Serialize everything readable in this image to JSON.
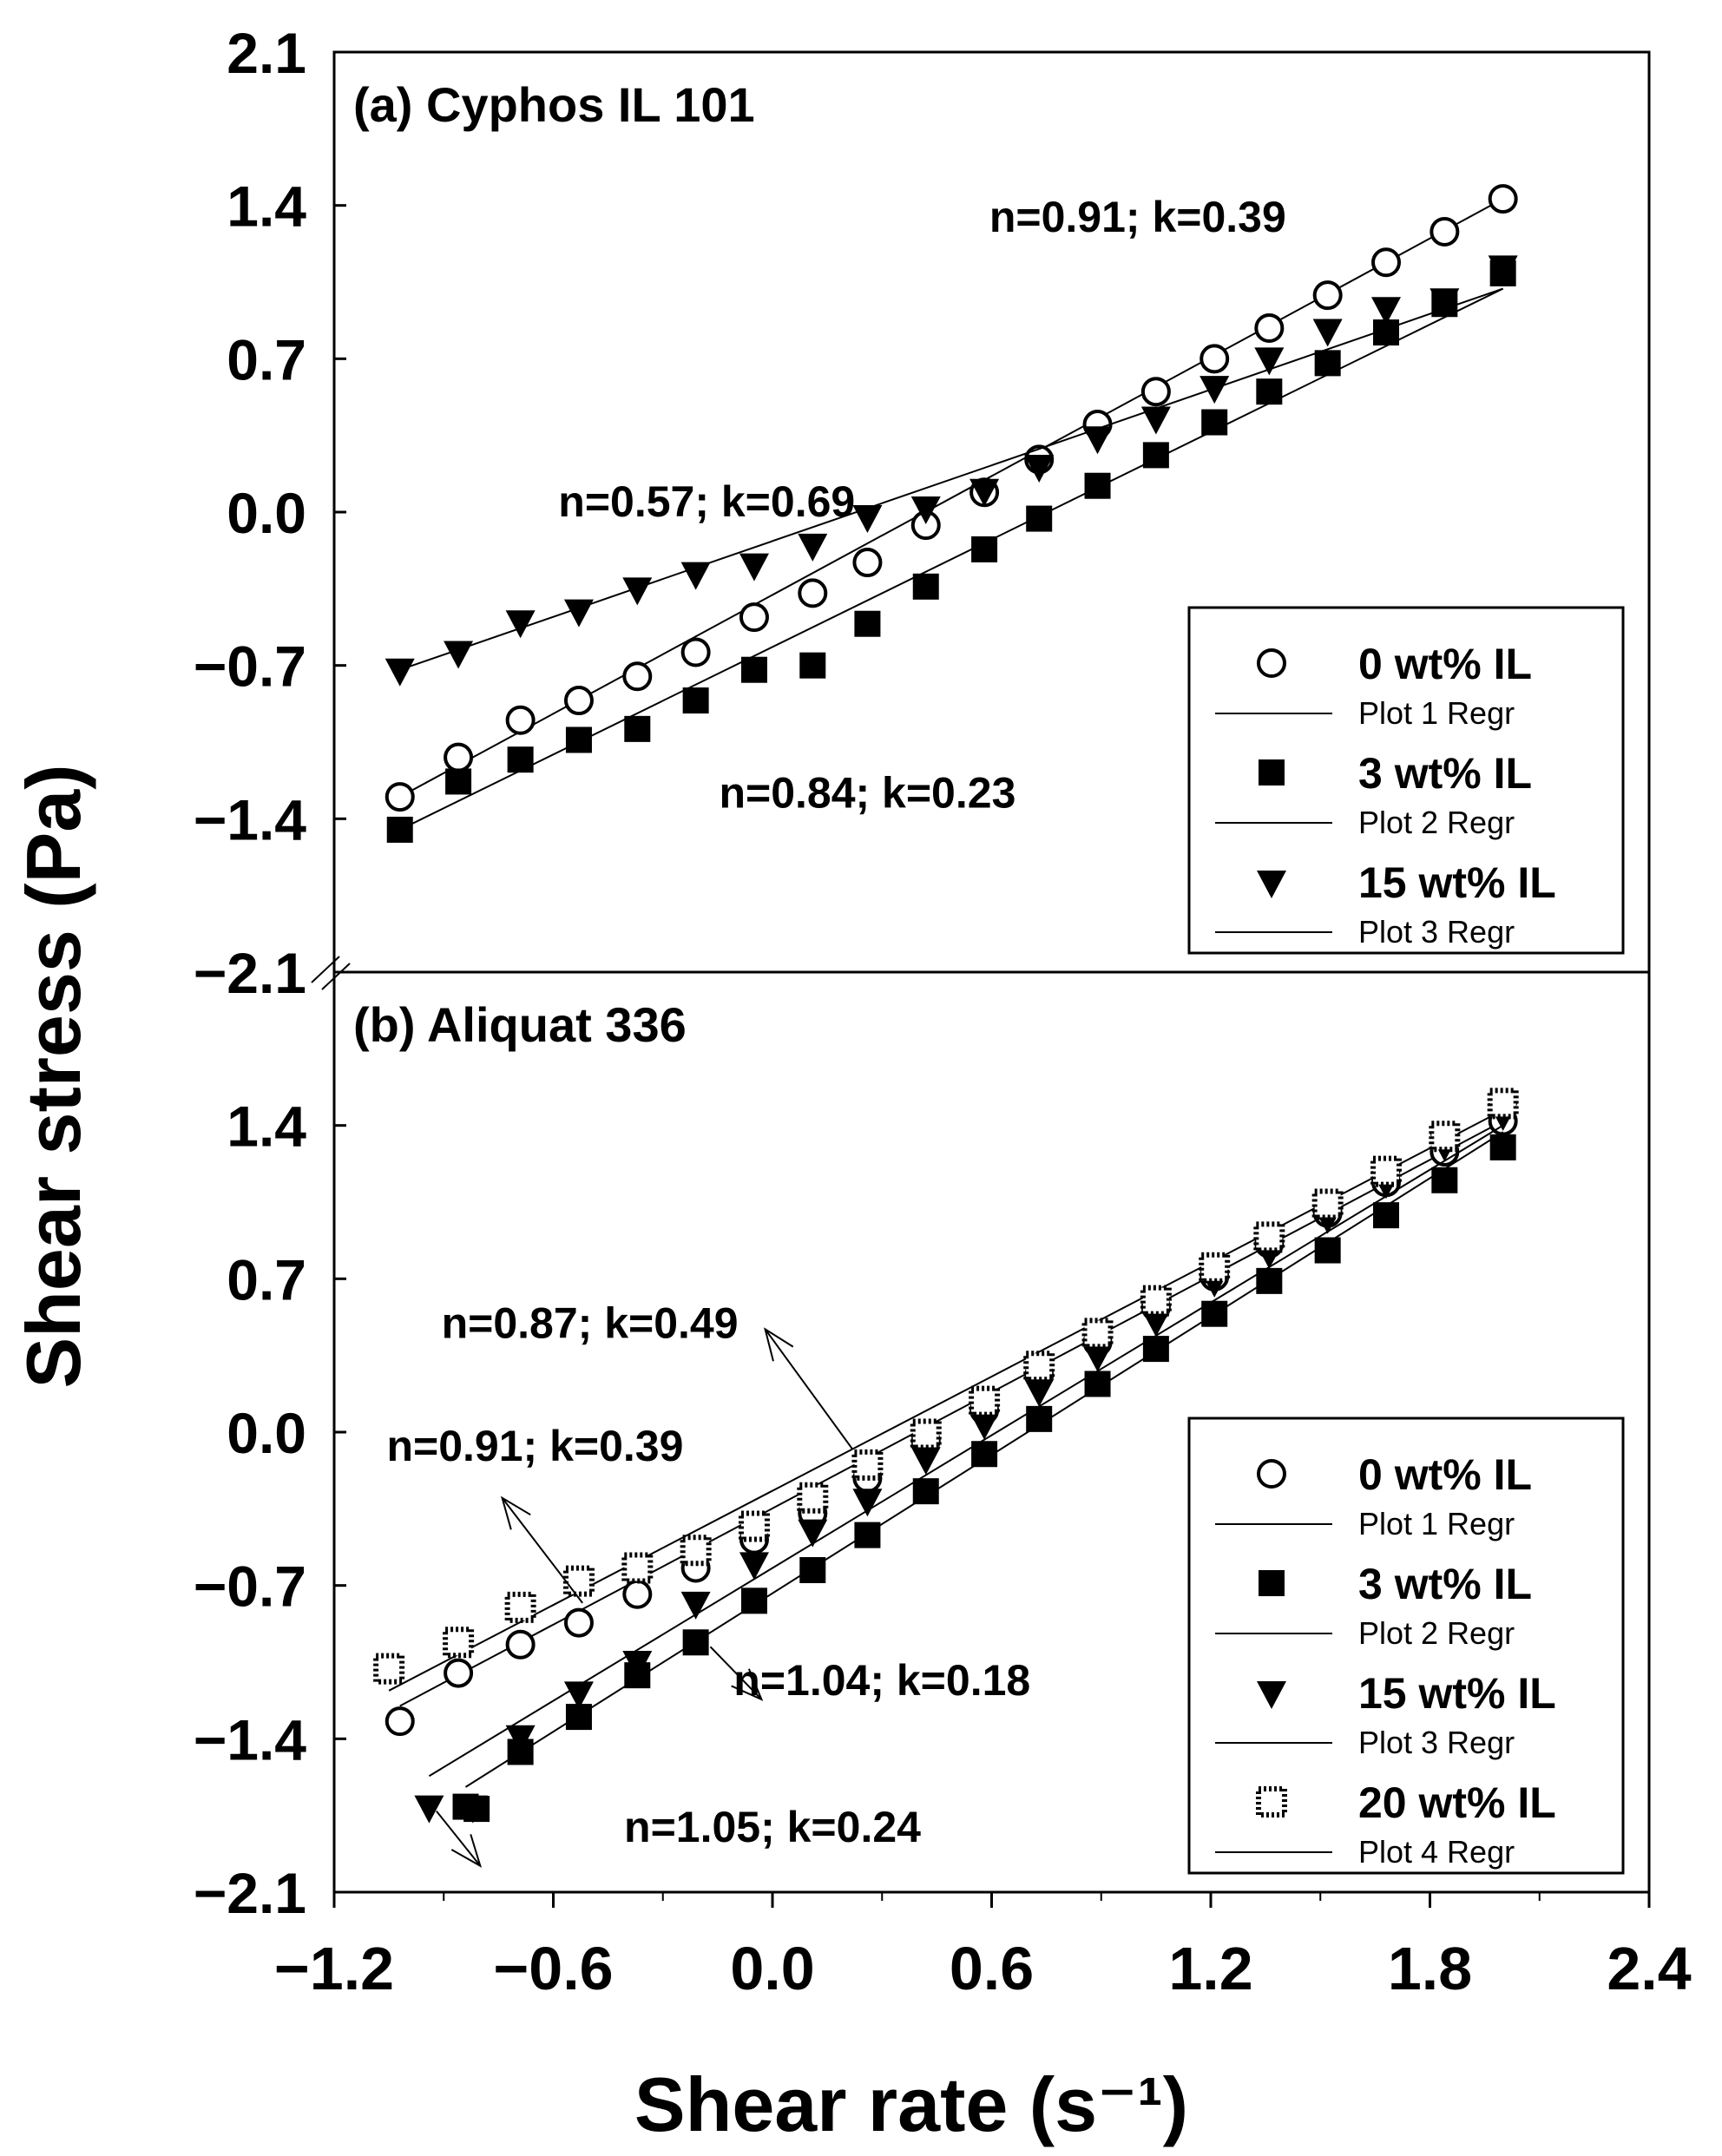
{
  "chart_data": {
    "type": "scatter",
    "xlabel": "Shear rate (s⁻¹)",
    "ylabel": "Shear stress (Pa)",
    "xlim": [
      -1.2,
      2.4
    ],
    "x_ticks": [
      "−1.2",
      "−0.6",
      "0.0",
      "0.6",
      "1.2",
      "1.8",
      "2.4"
    ],
    "y_ticks_top": [
      "2.1",
      "1.4",
      "0.7",
      "0.0",
      "−0.7",
      "−1.4",
      "−2.1"
    ],
    "y_ticks_bottom": [
      "1.4",
      "0.7",
      "0.0",
      "−0.7",
      "−1.4",
      "−2.1"
    ],
    "x_tick_values": [
      -1.2,
      -0.6,
      0.0,
      0.6,
      1.2,
      1.8,
      2.4
    ],
    "panels": [
      {
        "id": "a",
        "label": "(a)",
        "title": "Cyphos IL 101",
        "ylim": [
          -2.1,
          2.1
        ],
        "y_tick_values": [
          2.1,
          1.4,
          0.7,
          0.0,
          -0.7,
          -1.4,
          -2.1
        ],
        "annotations": [
          {
            "text": "n=0.91; k=0.39",
            "x": 1.0,
            "y": 1.28
          },
          {
            "text": "n=0.57; k=0.69",
            "x": -0.18,
            "y": -0.02
          },
          {
            "text": "n=0.84; k=0.23",
            "x": 0.26,
            "y": -1.35
          }
        ],
        "legend_position": "bottom-right",
        "legend": [
          {
            "label": "0 wt% IL",
            "regr": "Plot 1 Regr",
            "marker": "circle"
          },
          {
            "label": "3 wt% IL",
            "regr": "Plot 2 Regr",
            "marker": "square"
          },
          {
            "label": "15 wt% IL",
            "regr": "Plot 3 Regr",
            "marker": "triangle-down"
          }
        ],
        "series": [
          {
            "name": "0 wt% IL",
            "marker": "circle",
            "x": [
              -1.02,
              -0.86,
              -0.69,
              -0.53,
              -0.37,
              -0.21,
              -0.05,
              0.11,
              0.26,
              0.42,
              0.58,
              0.73,
              0.89,
              1.05,
              1.21,
              1.36,
              1.52,
              1.68,
              1.84,
              2.0
            ],
            "y": [
              -1.3,
              -1.12,
              -0.95,
              -0.86,
              -0.75,
              -0.64,
              -0.48,
              -0.37,
              -0.23,
              -0.06,
              0.09,
              0.24,
              0.4,
              0.55,
              0.7,
              0.84,
              0.99,
              1.14,
              1.28,
              1.43
            ],
            "fit": [
              -1.3,
              1.43
            ]
          },
          {
            "name": "3 wt% IL",
            "marker": "square",
            "x": [
              -1.02,
              -0.86,
              -0.69,
              -0.53,
              -0.37,
              -0.21,
              -0.05,
              0.11,
              0.26,
              0.42,
              0.58,
              0.73,
              0.89,
              1.05,
              1.21,
              1.36,
              1.52,
              1.68,
              1.84,
              2.0
            ],
            "y": [
              -1.45,
              -1.23,
              -1.13,
              -1.04,
              -0.99,
              -0.86,
              -0.72,
              -0.7,
              -0.51,
              -0.34,
              -0.17,
              -0.03,
              0.12,
              0.26,
              0.41,
              0.55,
              0.68,
              0.82,
              0.95,
              1.09
            ],
            "fit": [
              -1.45,
              1.02
            ]
          },
          {
            "name": "15 wt% IL",
            "marker": "triangle-down",
            "x": [
              -1.02,
              -0.86,
              -0.69,
              -0.53,
              -0.37,
              -0.21,
              -0.05,
              0.11,
              0.26,
              0.42,
              0.58,
              0.73,
              0.89,
              1.05,
              1.21,
              1.36,
              1.52,
              1.68,
              1.84,
              2.0
            ],
            "y": [
              -0.72,
              -0.64,
              -0.5,
              -0.45,
              -0.35,
              -0.28,
              -0.24,
              -0.15,
              -0.02,
              0.02,
              0.1,
              0.21,
              0.34,
              0.43,
              0.57,
              0.7,
              0.83,
              0.93,
              0.97,
              1.12
            ],
            "fit": [
              -0.72,
              1.02
            ]
          }
        ]
      },
      {
        "id": "b",
        "label": "(b)",
        "title": "Aliquat 336",
        "ylim": [
          -2.1,
          2.1
        ],
        "y_tick_values": [
          1.4,
          0.7,
          0.0,
          -0.7,
          -1.4,
          -2.1
        ],
        "annotations": [
          {
            "text": "n=0.87; k=0.49",
            "x": -0.5,
            "y": 0.43
          },
          {
            "text": "n=0.91; k=0.39",
            "x": -0.65,
            "y": -0.13
          },
          {
            "text": "n=1.04; k=0.18",
            "x": 0.3,
            "y": -1.2
          },
          {
            "text": "n=1.05; k=0.24",
            "x": 0.0,
            "y": -1.87
          }
        ],
        "arrows": [
          {
            "from": [
              0.22,
              -0.08
            ],
            "to": [
              -0.02,
              0.47
            ]
          },
          {
            "from": [
              -0.52,
              -0.78
            ],
            "to": [
              -0.74,
              -0.3
            ]
          },
          {
            "from": [
              -0.17,
              -0.98
            ],
            "to": [
              -0.03,
              -1.22
            ]
          },
          {
            "from": [
              -0.92,
              -1.73
            ],
            "to": [
              -0.8,
              -1.98
            ]
          }
        ],
        "legend_position": "bottom-right",
        "legend": [
          {
            "label": "0 wt% IL",
            "regr": "Plot 1 Regr",
            "marker": "circle"
          },
          {
            "label": "3 wt% IL",
            "regr": "Plot 2 Regr",
            "marker": "square"
          },
          {
            "label": "15 wt% IL",
            "regr": "Plot 3 Regr",
            "marker": "triangle-down"
          },
          {
            "label": "20 wt% IL",
            "regr": "Plot 4 Regr",
            "marker": "dotted-square"
          }
        ],
        "series": [
          {
            "name": "0 wt% IL",
            "marker": "circle",
            "x": [
              -1.02,
              -0.86,
              -0.69,
              -0.53,
              -0.37,
              -0.21,
              -0.05,
              0.11,
              0.26,
              0.42,
              0.58,
              0.73,
              0.89,
              1.05,
              1.21,
              1.36,
              1.52,
              1.68,
              1.84,
              2.0
            ],
            "y": [
              -1.32,
              -1.1,
              -0.97,
              -0.87,
              -0.74,
              -0.62,
              -0.49,
              -0.37,
              -0.21,
              -0.04,
              0.1,
              0.26,
              0.41,
              0.57,
              0.71,
              0.86,
              1.0,
              1.14,
              1.28,
              1.42
            ],
            "fit": [
              -1.25,
              1.42
            ]
          },
          {
            "name": "3 wt% IL",
            "marker": "square",
            "x": [
              -0.81,
              -0.84,
              -0.69,
              -0.53,
              -0.37,
              -0.21,
              -0.05,
              0.11,
              0.26,
              0.42,
              0.58,
              0.73,
              0.89,
              1.05,
              1.21,
              1.36,
              1.52,
              1.68,
              1.84,
              2.0
            ],
            "y": [
              -1.72,
              -1.71,
              -1.46,
              -1.3,
              -1.11,
              -0.96,
              -0.77,
              -0.63,
              -0.47,
              -0.27,
              -0.1,
              0.06,
              0.22,
              0.38,
              0.54,
              0.69,
              0.83,
              0.99,
              1.15,
              1.3
            ],
            "fit": [
              -1.62,
              1.37
            ]
          },
          {
            "name": "15 wt% IL",
            "marker": "triangle-down",
            "x": [
              -0.94,
              -0.82,
              -0.69,
              -0.53,
              -0.37,
              -0.21,
              -0.05,
              0.11,
              0.26,
              0.42,
              0.58,
              0.73,
              0.89,
              1.05,
              1.21,
              1.36,
              1.52,
              1.68,
              1.84,
              2.0
            ],
            "y": [
              -1.71,
              -1.71,
              -1.39,
              -1.19,
              -1.05,
              -0.78,
              -0.6,
              -0.45,
              -0.31,
              -0.12,
              0.04,
              0.19,
              0.35,
              0.51,
              0.69,
              0.82,
              0.98,
              1.14,
              1.31,
              1.45
            ],
            "fit": [
              -1.57,
              1.4
            ]
          },
          {
            "name": "20 wt% IL",
            "marker": "dotted-square",
            "x": [
              -1.05,
              -0.86,
              -0.69,
              -0.53,
              -0.37,
              -0.21,
              -0.05,
              0.11,
              0.26,
              0.42,
              0.58,
              0.73,
              0.89,
              1.05,
              1.21,
              1.36,
              1.52,
              1.68,
              1.84,
              2.0
            ],
            "y": [
              -1.08,
              -0.96,
              -0.8,
              -0.68,
              -0.62,
              -0.54,
              -0.43,
              -0.3,
              -0.15,
              -0.01,
              0.14,
              0.3,
              0.45,
              0.6,
              0.75,
              0.89,
              1.04,
              1.19,
              1.35,
              1.5
            ],
            "fit": [
              -1.18,
              1.47
            ]
          }
        ]
      }
    ]
  }
}
